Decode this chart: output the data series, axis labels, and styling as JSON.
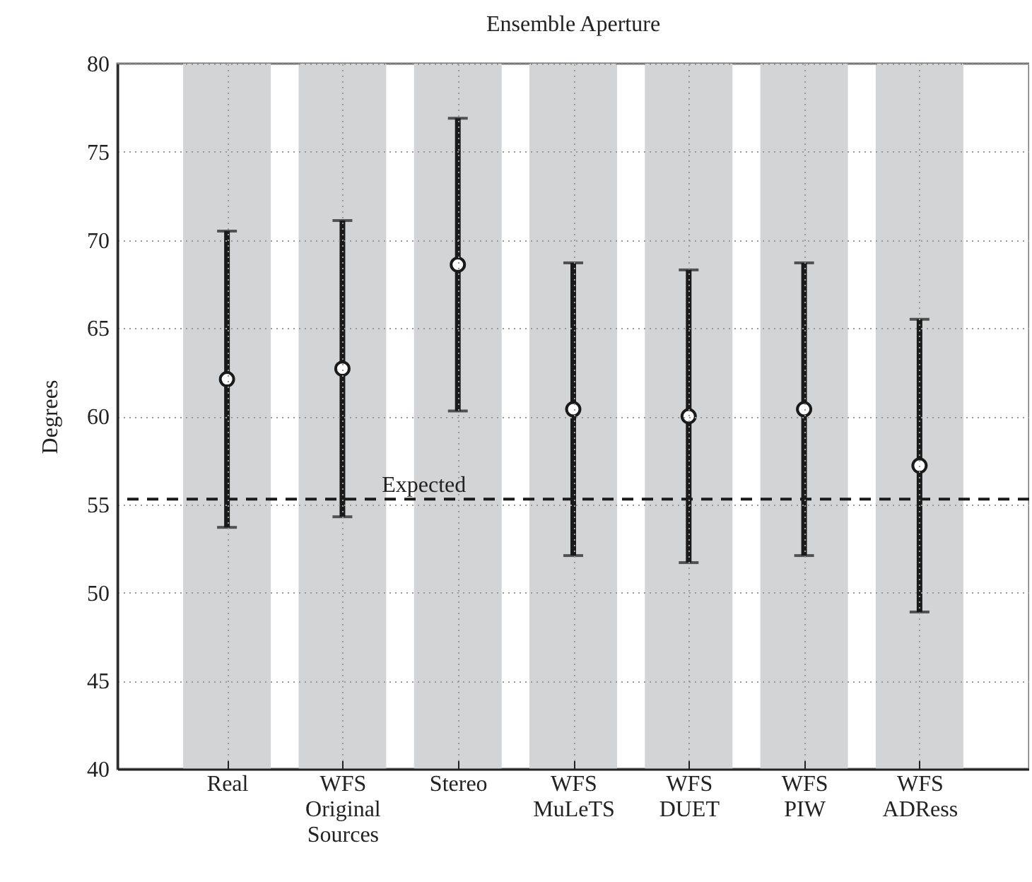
{
  "chart_data": {
    "type": "scatter",
    "title": "Ensemble Aperture",
    "ylabel": "Degrees",
    "categories": [
      "Real",
      "WFS Original Sources",
      "Stereo",
      "WFS MuLeTS",
      "WFS DUET",
      "WFS PIW",
      "WFS ADRess"
    ],
    "values": [
      62.1,
      62.7,
      68.6,
      60.4,
      60.0,
      60.4,
      57.2
    ],
    "errors": [
      8.4,
      8.4,
      8.3,
      8.3,
      8.3,
      8.3,
      8.3
    ],
    "color": "#1a1a1a",
    "marker": "circle",
    "ylim": [
      40,
      80
    ],
    "yticks": [
      40,
      45,
      50,
      55,
      60,
      65,
      70,
      75,
      80
    ],
    "grid": true,
    "ref_lines": [
      {
        "axis": "y",
        "value": 55.3,
        "label": "Expected",
        "line_style": "dashed",
        "color": "#1a1a1a"
      }
    ],
    "bands": [
      {
        "axis": "x",
        "from": "Real",
        "to": "Real",
        "color": "#d3d4d6"
      },
      {
        "axis": "x",
        "from": "WFS Original Sources",
        "to": "WFS Original Sources",
        "color": "#d3d4d6"
      },
      {
        "axis": "x",
        "from": "Stereo",
        "to": "Stereo",
        "color": "#d3d4d6"
      },
      {
        "axis": "x",
        "from": "WFS MuLeTS",
        "to": "WFS MuLeTS",
        "color": "#d3d4d6"
      },
      {
        "axis": "x",
        "from": "WFS DUET",
        "to": "WFS DUET",
        "color": "#d3d4d6"
      },
      {
        "axis": "x",
        "from": "WFS PIW",
        "to": "WFS PIW",
        "color": "#d3d4d6"
      },
      {
        "axis": "x",
        "from": "WFS ADRess",
        "to": "WFS ADRess",
        "color": "#d3d4d6"
      }
    ]
  }
}
